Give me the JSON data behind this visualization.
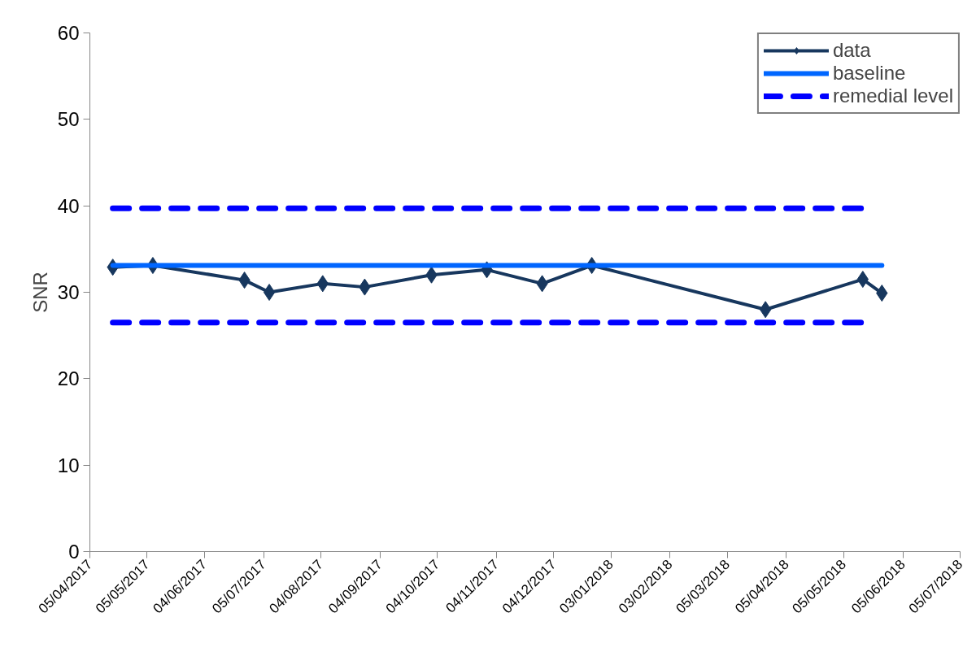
{
  "chart_data": {
    "type": "line",
    "ylabel": "SNR",
    "xlim": [
      "2017-04-05",
      "2018-07-05"
    ],
    "ylim": [
      0,
      60
    ],
    "yticks": [
      0,
      10,
      20,
      30,
      40,
      50,
      60
    ],
    "xticks": [
      {
        "value": "2017-04-05",
        "label": "05/04/2017"
      },
      {
        "value": "2017-05-05",
        "label": "05/05/2017"
      },
      {
        "value": "2017-06-04",
        "label": "04/06/2017"
      },
      {
        "value": "2017-07-05",
        "label": "05/07/2017"
      },
      {
        "value": "2017-08-04",
        "label": "04/08/2017"
      },
      {
        "value": "2017-09-04",
        "label": "04/09/2017"
      },
      {
        "value": "2017-10-04",
        "label": "04/10/2017"
      },
      {
        "value": "2017-11-04",
        "label": "04/11/2017"
      },
      {
        "value": "2017-12-04",
        "label": "04/12/2017"
      },
      {
        "value": "2018-01-03",
        "label": "03/01/2018"
      },
      {
        "value": "2018-02-03",
        "label": "03/02/2018"
      },
      {
        "value": "2018-03-05",
        "label": "05/03/2018"
      },
      {
        "value": "2018-04-05",
        "label": "05/04/2018"
      },
      {
        "value": "2018-05-05",
        "label": "05/05/2018"
      },
      {
        "value": "2018-06-05",
        "label": "05/06/2018"
      },
      {
        "value": "2018-07-05",
        "label": "05/07/2018"
      }
    ],
    "grid": false,
    "legend": "top right",
    "series": [
      {
        "name": "data",
        "color": "#17375e",
        "marker": "diamond",
        "line_style": "solid",
        "x": [
          "2017-04-17",
          "2017-05-08",
          "2017-06-25",
          "2017-07-08",
          "2017-08-05",
          "2017-08-27",
          "2017-10-01",
          "2017-10-30",
          "2017-11-28",
          "2017-12-24",
          "2018-03-25",
          "2018-05-15",
          "2018-05-25"
        ],
        "values": [
          32.9,
          33.1,
          31.4,
          30.0,
          31.0,
          30.6,
          32.0,
          32.6,
          31.0,
          33.1,
          28.0,
          31.5,
          29.9
        ]
      },
      {
        "name": "baseline",
        "color": "#0066ff",
        "marker": "none",
        "line_style": "solid",
        "x": [
          "2017-04-17",
          "2018-05-25"
        ],
        "values": [
          33.1,
          33.1
        ]
      },
      {
        "name": "remedial level",
        "color": "#0000ff",
        "marker": "none",
        "line_style": "dashed",
        "x": [
          "2017-04-17",
          "2018-05-15"
        ],
        "values": [
          39.7,
          39.7
        ]
      },
      {
        "color": "#0000ff",
        "marker": "none",
        "line_style": "dashed",
        "x": [
          "2017-04-17",
          "2018-05-15"
        ],
        "values": [
          26.5,
          26.5
        ]
      }
    ]
  }
}
